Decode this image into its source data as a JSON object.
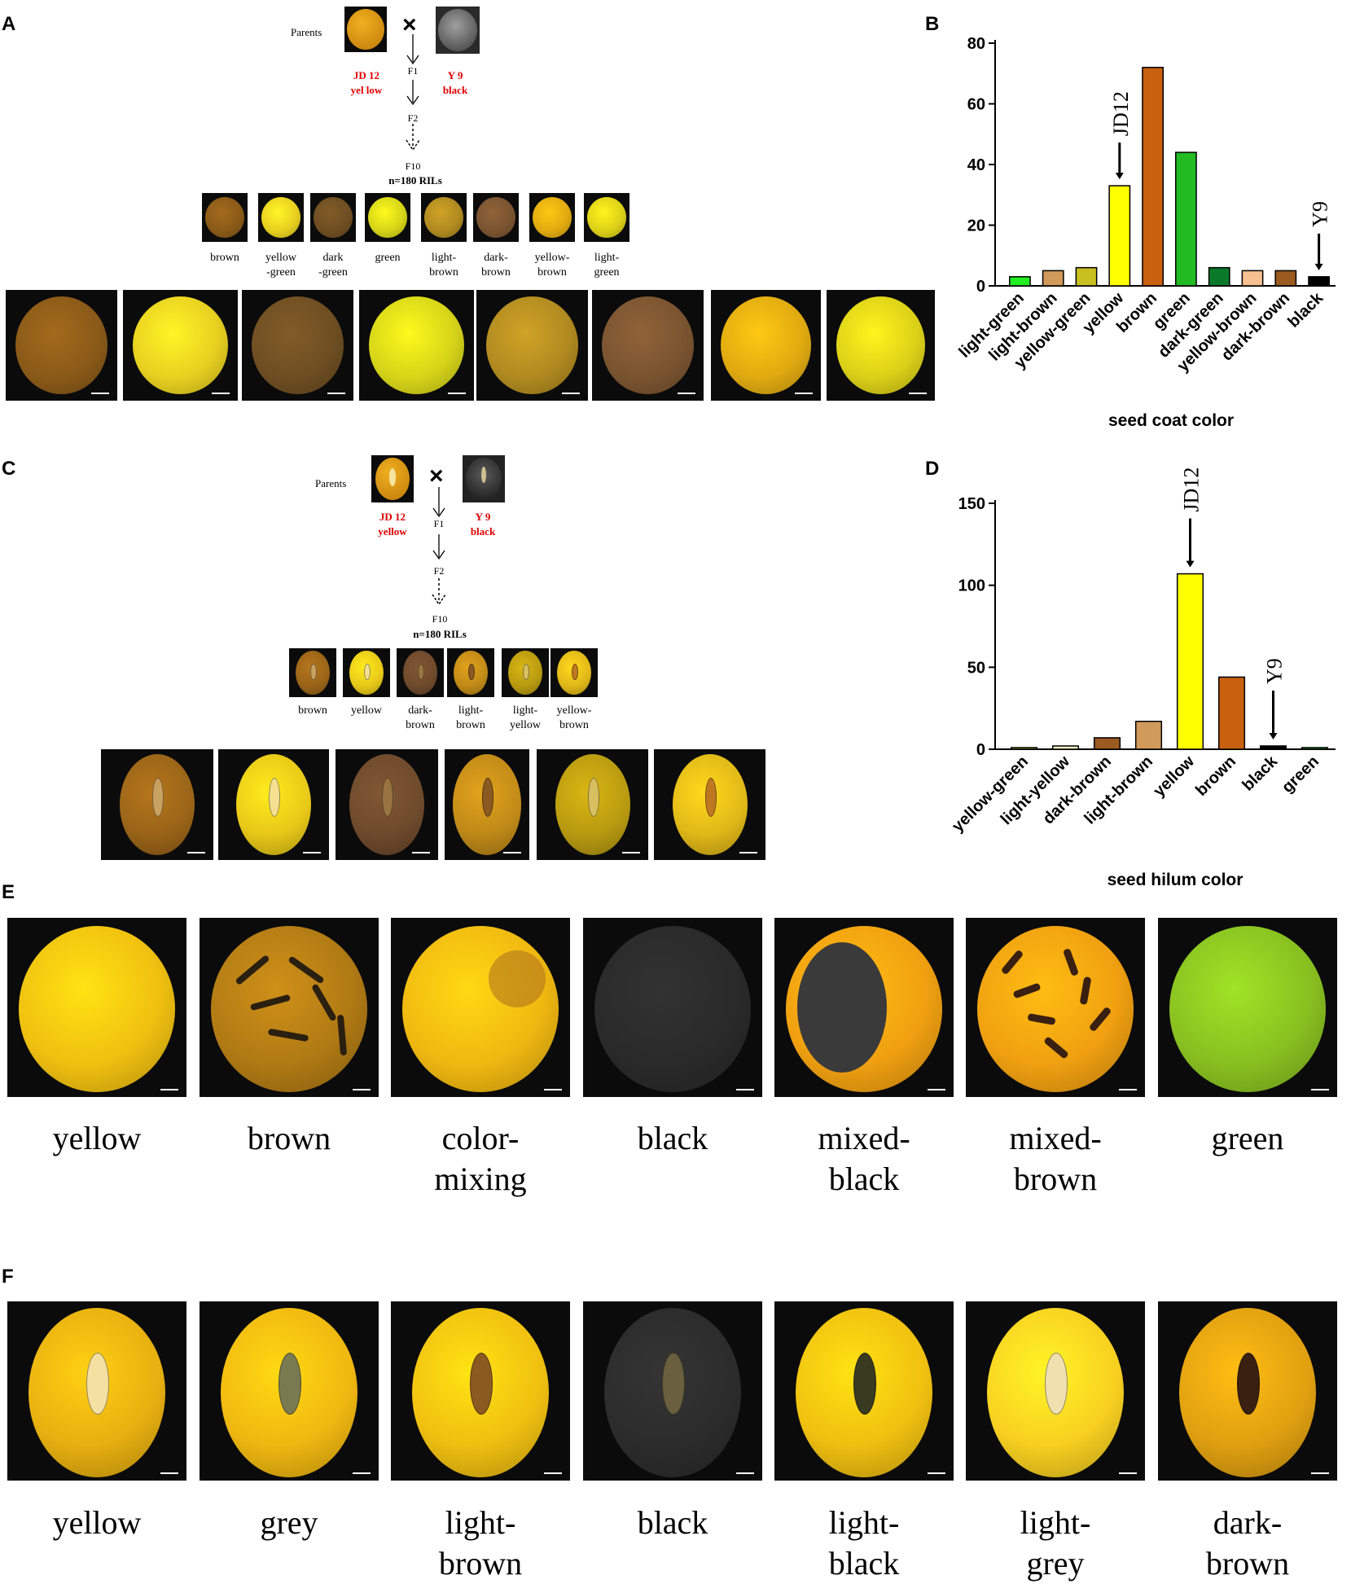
{
  "panels": {
    "A": "A",
    "B": "B",
    "C": "C",
    "D": "D",
    "E": "E",
    "F": "F"
  },
  "panel_a": {
    "parents_label": "Parents",
    "cross_symbol": "×",
    "parent1_name": "JD 12",
    "parent1_color": "yel low",
    "parent2_name": "Y 9",
    "parent2_color": "black",
    "gen_f1": "F1",
    "gen_f2": "F2",
    "gen_f10": "F10",
    "ril_count": "n=180 RILs",
    "categories": [
      {
        "line1": "brown",
        "line2": "",
        "color": "#8a5a18"
      },
      {
        "line1": "yellow",
        "line2": "-green",
        "color": "#e8d020"
      },
      {
        "line1": "dark",
        "line2": "-green",
        "color": "#6e4e22"
      },
      {
        "line1": "green",
        "line2": "",
        "color": "#d6d418"
      },
      {
        "line1": "light-",
        "line2": "brown",
        "color": "#b08a20"
      },
      {
        "line1": "dark-",
        "line2": "brown",
        "color": "#7a5430"
      },
      {
        "line1": "yellow-",
        "line2": "brown",
        "color": "#e0aa10"
      },
      {
        "line1": "light-",
        "line2": "green",
        "color": "#dcd018"
      }
    ]
  },
  "panel_c": {
    "parents_label": "Parents",
    "cross_symbol": "×",
    "parent1_name": "JD 12",
    "parent1_color": "yellow",
    "parent2_name": "Y 9",
    "parent2_color": "black",
    "gen_f1": "F1",
    "gen_f2": "F2",
    "gen_f10": "F10",
    "ril_count": "n=180 RILs",
    "categories": [
      {
        "line1": "brown",
        "line2": "",
        "color": "#9a6418",
        "hilum": "#c8a060"
      },
      {
        "line1": "yellow",
        "line2": "",
        "color": "#e8c818",
        "hilum": "#f4e090"
      },
      {
        "line1": "dark-",
        "line2": "brown",
        "color": "#6e4a2c",
        "hilum": "#9a7440"
      },
      {
        "line1": "light-",
        "line2": "brown",
        "color": "#c08a18",
        "hilum": "#8a5a20"
      },
      {
        "line1": "light-",
        "line2": "yellow",
        "color": "#b89a10",
        "hilum": "#d8c060"
      },
      {
        "line1": "yellow-",
        "line2": "brown",
        "color": "#e0b818",
        "hilum": "#c07820"
      }
    ]
  },
  "chart_data": [
    {
      "type": "bar",
      "categories": [
        "light-green",
        "light-brown",
        "yellow-green",
        "yellow",
        "brown",
        "green",
        "dark-green",
        "yellow-brown",
        "dark-brown",
        "black"
      ],
      "values": [
        3,
        5,
        6,
        33,
        72,
        44,
        6,
        5,
        5,
        3
      ],
      "colors": [
        "#22ee22",
        "#d09a5a",
        "#c8c020",
        "#ffff00",
        "#c86010",
        "#22bb22",
        "#0a7a2a",
        "#f6c090",
        "#9a5a20",
        "#000000"
      ],
      "xlabel": "seed coat color",
      "ylim": [
        0,
        80
      ],
      "yticks": [
        0,
        20,
        40,
        60,
        80
      ],
      "annotations": [
        {
          "text": "JD12",
          "category": "yellow"
        },
        {
          "text": "Y9",
          "category": "black"
        }
      ]
    },
    {
      "type": "bar",
      "categories": [
        "yellow-green",
        "light-yellow",
        "dark-brown",
        "light-brown",
        "yellow",
        "brown",
        "black",
        "green"
      ],
      "values": [
        1,
        2,
        7,
        17,
        107,
        44,
        2,
        1
      ],
      "colors": [
        "#c8c020",
        "#f0f0c0",
        "#9a5a20",
        "#d09a5a",
        "#ffff00",
        "#c86010",
        "#000000",
        "#22bb22"
      ],
      "xlabel": "seed hilum color",
      "ylim": [
        0,
        150
      ],
      "yticks": [
        0,
        50,
        100,
        150
      ],
      "annotations": [
        {
          "text": "JD12",
          "category": "yellow"
        },
        {
          "text": "Y9",
          "category": "black"
        }
      ]
    }
  ],
  "panel_e": {
    "items": [
      {
        "line1": "yellow",
        "line2": "",
        "base": "#f0c010"
      },
      {
        "line1": "brown",
        "line2": "",
        "base": "#b07a14"
      },
      {
        "line1": "color-",
        "line2": "mixing",
        "base": "#f0b810"
      },
      {
        "line1": "black",
        "line2": "",
        "base": "#2a2a2a"
      },
      {
        "line1": "mixed-",
        "line2": "black",
        "base": "#f0a010"
      },
      {
        "line1": "mixed-",
        "line2": "brown",
        "base": "#f0a010"
      },
      {
        "line1": "green",
        "line2": "",
        "base": "#88c020"
      }
    ]
  },
  "panel_f": {
    "items": [
      {
        "line1": "yellow",
        "line2": "",
        "base": "#e8b010",
        "hilum": "#f4e0a0"
      },
      {
        "line1": "grey",
        "line2": "",
        "base": "#f0b810",
        "hilum": "#7a7a50"
      },
      {
        "line1": "light-",
        "line2": "brown",
        "base": "#f0c010",
        "hilum": "#8a5a20"
      },
      {
        "line1": "black",
        "line2": "",
        "base": "#2c2c2c",
        "hilum": "#6a6040"
      },
      {
        "line1": "light-",
        "line2": "black",
        "base": "#f0c010",
        "hilum": "#3a3a20"
      },
      {
        "line1": "light-",
        "line2": "grey",
        "base": "#f8d020",
        "hilum": "#f0e0b0"
      },
      {
        "line1": "dark-",
        "line2": "brown",
        "base": "#e0a010",
        "hilum": "#3a2010"
      }
    ]
  }
}
